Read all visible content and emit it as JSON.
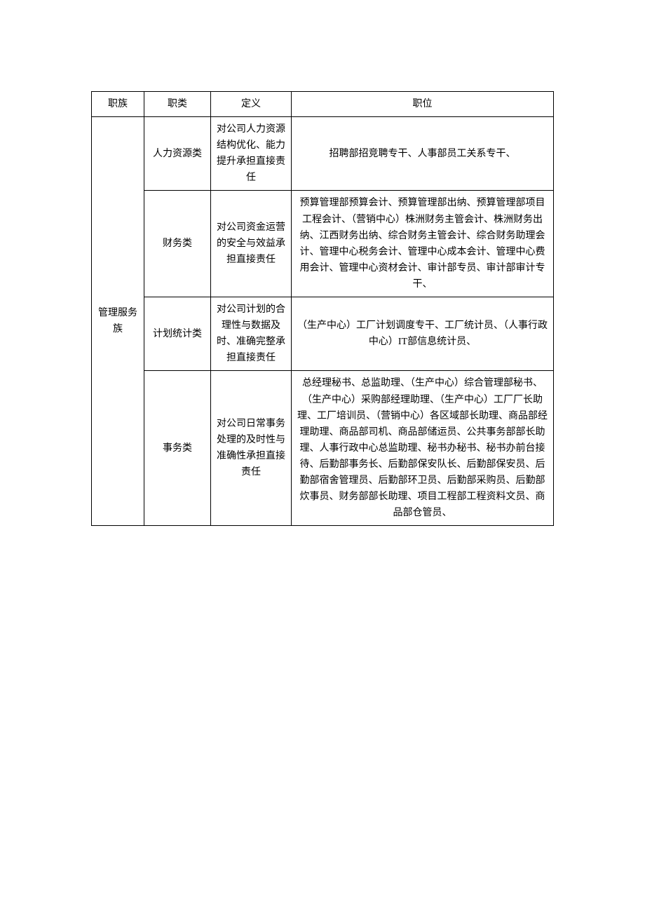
{
  "table": {
    "columns": [
      "职族",
      "职类",
      "定义",
      "职位"
    ],
    "column_widths": [
      "75px",
      "95px",
      "115px",
      "auto"
    ],
    "border_color": "#000000",
    "background_color": "#ffffff",
    "text_color": "#000000",
    "font_size": 14,
    "font_family": "SimSun",
    "family_label": "管理服务族",
    "rows": [
      {
        "category": "人力资源类",
        "definition": "对公司人力资源结构优化、能力提升承担直接责任",
        "position": "招聘部招竞聘专干、人事部员工关系专干、"
      },
      {
        "category": "财务类",
        "definition": "对公司资金运营的安全与效益承担直接责任",
        "position": "预算管理部预算会计、预算管理部出纳、预算管理部项目工程会计、（营销中心）株洲财务主管会计、株洲财务出纳、江西财务出纳、综合财务主管会计、综合财务助理会计、管理中心税务会计、管理中心成本会计、管理中心费用会计、管理中心资材会计、审计部专员、审计部审计专干、"
      },
      {
        "category": "计划统计类",
        "definition": "对公司计划的合理性与数据及时、准确完整承担直接责任",
        "position": "（生产中心）工厂计划调度专干、工厂统计员、（人事行政中心）IT部信息统计员、"
      },
      {
        "category": "事务类",
        "definition": "对公司日常事务处理的及时性与准确性承担直接责任",
        "position": "总经理秘书、总监助理、（生产中心）综合管理部秘书、（生产中心）采购部经理助理、（生产中心）工厂厂长助理、工厂培训员、（营销中心）各区域部长助理、商品部经理助理、商品部司机、商品部储运员、公共事务部部长助理、人事行政中心总监助理、秘书办秘书、秘书办前台接待、后勤部事务长、后勤部保安队长、后勤部保安员、后勤部宿舍管理员、后勤部环卫员、后勤部采购员、后勤部炊事员、财务部部长助理、项目工程部工程资料文员、商品部仓管员、"
      }
    ]
  }
}
